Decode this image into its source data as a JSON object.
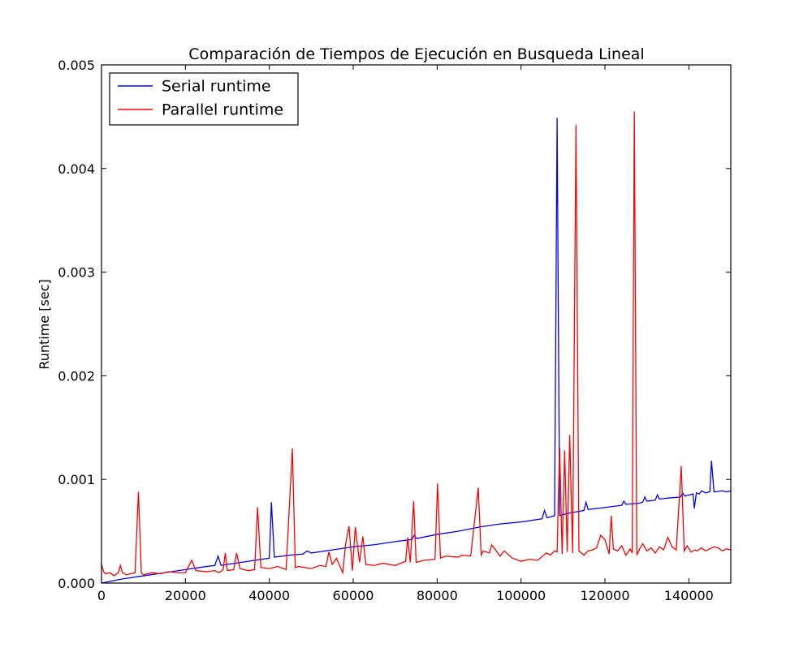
{
  "chart_data": {
    "type": "line",
    "title": "Comparación de Tiempos de Ejecución en Busqueda Lineal",
    "xlabel": "",
    "ylabel": "Runtime [sec]",
    "xlim": [
      0,
      150000
    ],
    "ylim": [
      0,
      0.005
    ],
    "x_ticks": [
      0,
      20000,
      40000,
      60000,
      80000,
      100000,
      120000,
      140000
    ],
    "x_tick_labels": [
      "0",
      "20000",
      "40000",
      "60000",
      "80000",
      "100000",
      "120000",
      "140000"
    ],
    "y_ticks": [
      0,
      0.001,
      0.002,
      0.003,
      0.004,
      0.005
    ],
    "y_tick_labels": [
      "0.000",
      "0.001",
      "0.002",
      "0.003",
      "0.004",
      "0.005"
    ],
    "grid": false,
    "legend_position": "top-left",
    "series": [
      {
        "name": "Serial runtime",
        "color": "#0000ff",
        "x": [
          0,
          5000,
          10000,
          15000,
          20000,
          25000,
          27000,
          27800,
          28500,
          30000,
          35000,
          40000,
          40500,
          41200,
          45000,
          48000,
          49000,
          50000,
          55000,
          60000,
          65000,
          70000,
          74000,
          74500,
          75200,
          80000,
          85000,
          90000,
          95000,
          100000,
          105000,
          105600,
          106200,
          107000,
          108000,
          108600,
          109200,
          110000,
          112000,
          115000,
          115500,
          116000,
          120000,
          124000,
          124500,
          125000,
          128000,
          129000,
          129500,
          130000,
          132000,
          132500,
          133000,
          135000,
          138000,
          138500,
          139000,
          140000,
          141000,
          141300,
          141800,
          142500,
          143000,
          144000,
          145000,
          145400,
          146000,
          148000,
          149000,
          150000
        ],
        "y": [
          0.0,
          4e-05,
          7e-05,
          0.0001,
          0.00013,
          0.00016,
          0.00017,
          0.00026,
          0.00017,
          0.00018,
          0.00021,
          0.00024,
          0.00078,
          0.00025,
          0.00027,
          0.00028,
          0.00031,
          0.00029,
          0.00032,
          0.00035,
          0.00037,
          0.0004,
          0.00042,
          0.00046,
          0.00043,
          0.00047,
          0.0005,
          0.00054,
          0.00057,
          0.00059,
          0.00062,
          0.0007,
          0.00063,
          0.00064,
          0.00065,
          0.00449,
          0.00065,
          0.00066,
          0.00068,
          0.0007,
          0.00078,
          0.00071,
          0.00073,
          0.00075,
          0.00079,
          0.00076,
          0.00077,
          0.00078,
          0.00083,
          0.00079,
          0.0008,
          0.00085,
          0.00081,
          0.00082,
          0.00083,
          0.00087,
          0.00084,
          0.00085,
          0.00086,
          0.00072,
          0.00087,
          0.00086,
          0.00089,
          0.00087,
          0.00088,
          0.00118,
          0.00088,
          0.00089,
          0.00088,
          0.00089
        ]
      },
      {
        "name": "Parallel runtime",
        "color": "#ff0000",
        "x": [
          0,
          500,
          1000,
          2000,
          3000,
          4000,
          4500,
          5000,
          6000,
          7000,
          8000,
          8800,
          9500,
          10000,
          12000,
          14000,
          16000,
          18000,
          20000,
          21500,
          22500,
          25000,
          27000,
          28000,
          29000,
          29500,
          30000,
          31500,
          32200,
          33000,
          35000,
          36500,
          37200,
          38000,
          40000,
          42000,
          44000,
          45500,
          46200,
          47000,
          50000,
          52000,
          53500,
          54200,
          55000,
          56000,
          57500,
          58200,
          59000,
          59800,
          60500,
          61500,
          62300,
          63000,
          65000,
          67000,
          70000,
          72500,
          73000,
          73600,
          74400,
          75000,
          77000,
          79500,
          80100,
          80800,
          82000,
          85000,
          86000,
          88000,
          89800,
          90500,
          91000,
          92500,
          93000,
          95000,
          96000,
          98000,
          100000,
          102000,
          104000,
          106000,
          107000,
          108000,
          108600,
          109200,
          109800,
          110400,
          111000,
          111600,
          112300,
          113100,
          113800,
          115000,
          116000,
          117000,
          118000,
          119000,
          120000,
          121000,
          121500,
          122000,
          123000,
          124000,
          125000,
          126000,
          126500,
          127000,
          127600,
          128300,
          129000,
          130000,
          131000,
          132000,
          133000,
          134000,
          135000,
          136000,
          137000,
          138200,
          138900,
          139600,
          140500,
          141500,
          142000,
          143000,
          144000,
          145000,
          146000,
          147000,
          148000,
          149000,
          150000
        ],
        "y": [
          0.00018,
          0.00011,
          9e-05,
          0.0001,
          7e-05,
          0.0001,
          0.00017,
          0.0001,
          8e-05,
          9e-05,
          0.0001,
          0.00088,
          0.0001,
          8e-05,
          0.0001,
          9e-05,
          0.00011,
          0.0001,
          0.0001,
          0.00022,
          0.00012,
          0.00011,
          0.00012,
          0.0001,
          0.00013,
          0.00029,
          0.00012,
          0.00013,
          0.00029,
          0.00014,
          0.00012,
          0.00013,
          0.00073,
          0.00015,
          0.00014,
          0.00016,
          0.00013,
          0.0013,
          0.00015,
          0.00016,
          0.00014,
          0.00017,
          0.00016,
          0.0003,
          0.00018,
          0.00024,
          0.0001,
          0.00038,
          0.00055,
          0.00012,
          0.00054,
          0.0002,
          0.00045,
          0.00018,
          0.00017,
          0.00019,
          0.00017,
          0.00021,
          0.00044,
          0.0002,
          0.00079,
          0.0002,
          0.00022,
          0.00023,
          0.00096,
          0.00024,
          0.00026,
          0.00025,
          0.00027,
          0.00026,
          0.00092,
          0.00027,
          0.00031,
          0.00029,
          0.00037,
          0.00026,
          0.00031,
          0.00024,
          0.00021,
          0.00023,
          0.00022,
          0.00029,
          0.00027,
          0.00031,
          0.0003,
          0.00131,
          0.00028,
          0.00128,
          0.0003,
          0.00143,
          0.00029,
          0.00442,
          0.00031,
          0.00027,
          0.00031,
          0.00032,
          0.00034,
          0.00046,
          0.00042,
          0.00028,
          0.00065,
          0.00033,
          0.00031,
          0.00036,
          0.00027,
          0.00033,
          0.00029,
          0.00455,
          0.00027,
          0.00033,
          0.00038,
          0.00031,
          0.00034,
          0.00029,
          0.00035,
          0.00032,
          0.00044,
          0.00035,
          0.00032,
          0.00113,
          0.00031,
          0.00036,
          0.0003,
          0.00032,
          0.00031,
          0.00034,
          0.00031,
          0.00033,
          0.00035,
          0.00034,
          0.00031,
          0.00033,
          0.00032
        ]
      }
    ]
  }
}
